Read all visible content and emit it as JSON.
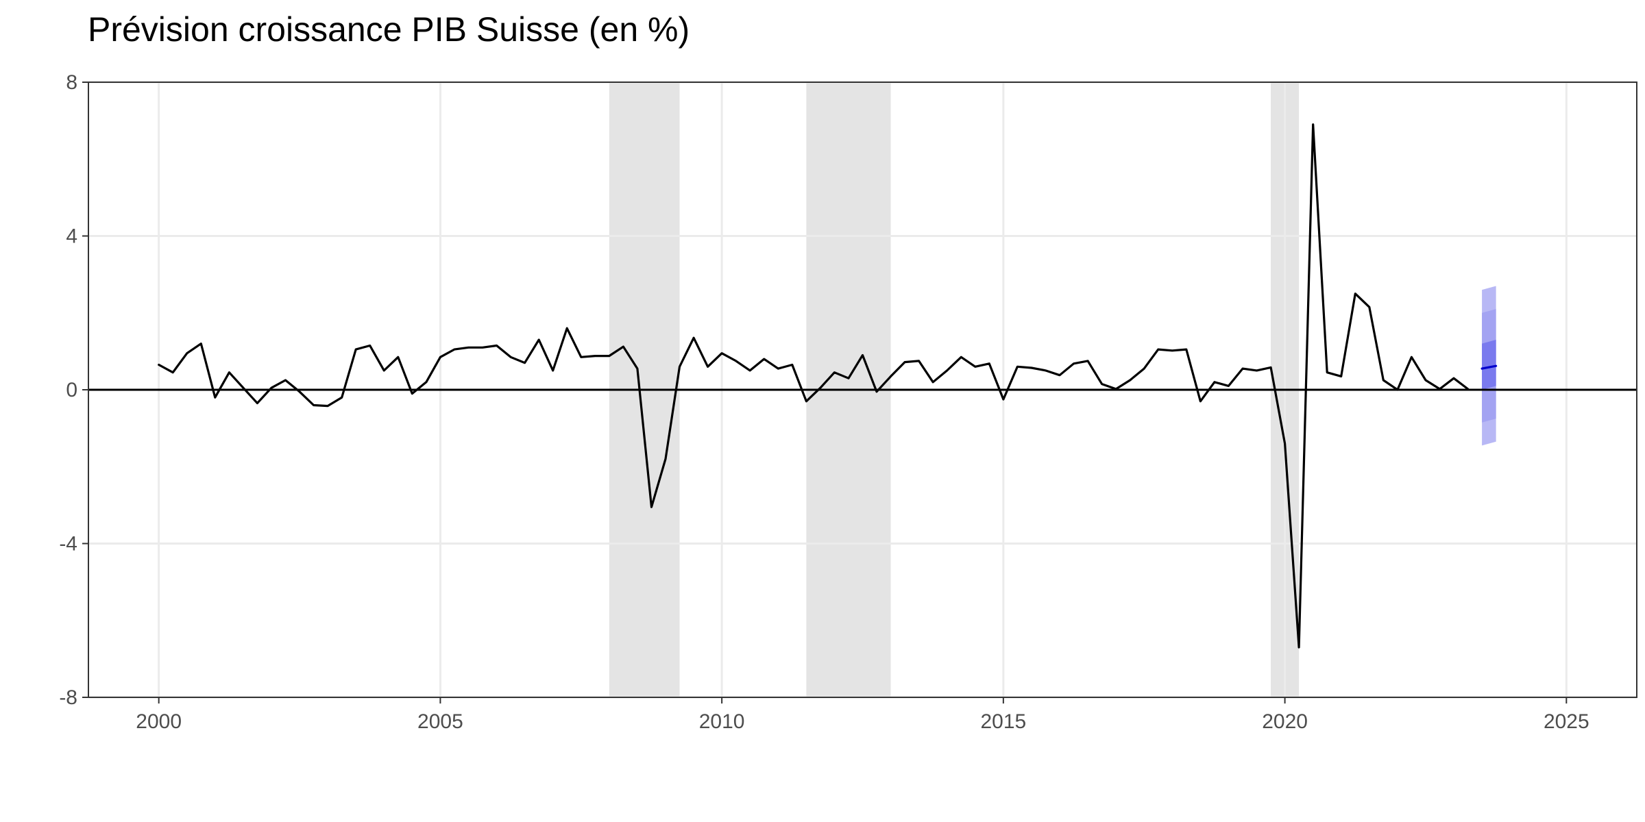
{
  "chart_data": {
    "type": "line",
    "title": "Prévision croissance PIB Suisse (en %)",
    "xlabel": "",
    "ylabel": "",
    "xlim": [
      1998.75,
      2026.25
    ],
    "ylim": [
      -8,
      8
    ],
    "x_ticks": [
      2000,
      2005,
      2010,
      2015,
      2020,
      2025
    ],
    "x_tick_labels": [
      "2000",
      "2005",
      "2010",
      "2015",
      "2020",
      "2025"
    ],
    "y_ticks": [
      -8,
      -4,
      0,
      4,
      8
    ],
    "y_tick_labels": [
      "-8",
      "-4",
      "0",
      "4",
      "8"
    ],
    "grid": true,
    "zero_line": 0,
    "recession_periods": [
      [
        2008.0,
        2009.25
      ],
      [
        2011.5,
        2013.0
      ],
      [
        2019.75,
        2020.25
      ]
    ],
    "series": [
      {
        "x_start": 2000.0,
        "x_step": 0.25,
        "values": [
          0.65,
          0.45,
          0.95,
          1.2,
          -0.2,
          0.45,
          0.05,
          -0.35,
          0.05,
          0.25,
          -0.05,
          -0.4,
          -0.42,
          -0.2,
          1.05,
          1.15,
          0.5,
          0.85,
          -0.1,
          0.2,
          0.85,
          1.05,
          1.1,
          1.1,
          1.15,
          0.85,
          0.7,
          1.3,
          0.5,
          1.6,
          0.85,
          0.88,
          0.88,
          1.12,
          0.55,
          -3.05,
          -1.8,
          0.6,
          1.35,
          0.6,
          0.95,
          0.75,
          0.5,
          0.8,
          0.55,
          0.65,
          -0.3,
          0.05,
          0.45,
          0.3,
          0.9,
          -0.05,
          0.35,
          0.72,
          0.75,
          0.2,
          0.5,
          0.85,
          0.6,
          0.68,
          -0.25,
          0.6,
          0.57,
          0.5,
          0.38,
          0.68,
          0.75,
          0.15,
          0.02,
          0.25,
          0.55,
          1.05,
          1.02,
          1.05,
          -0.3,
          0.2,
          0.1,
          0.55,
          0.5,
          0.58,
          -1.4,
          -6.7,
          6.9,
          0.45,
          0.35,
          2.5,
          2.15,
          0.25,
          0.0,
          0.85,
          0.25,
          0.02,
          0.3,
          0.02
        ],
        "color": "#000000"
      },
      {
        "x": [
          2023.5,
          2023.75
        ],
        "values": [
          0.55,
          0.62
        ],
        "color": "#0000cc"
      }
    ],
    "forecast_bands": [
      {
        "x": [
          2023.5,
          2023.75
        ],
        "lower": [
          -1.45,
          -1.35
        ],
        "upper": [
          2.6,
          2.7
        ],
        "color": "#b8b8f5"
      },
      {
        "x": [
          2023.5,
          2023.75
        ],
        "lower": [
          -0.85,
          -0.75
        ],
        "upper": [
          2.0,
          2.1
        ],
        "color": "#a3a3f2"
      },
      {
        "x": [
          2023.5,
          2023.75
        ],
        "lower": [
          0.0,
          0.1
        ],
        "upper": [
          1.2,
          1.3
        ],
        "color": "#7a7aee"
      }
    ],
    "colors": {
      "recession": "#e4e4e4",
      "grid": "#ebebeb",
      "axis": "#333333",
      "zero_line": "#000000"
    }
  }
}
